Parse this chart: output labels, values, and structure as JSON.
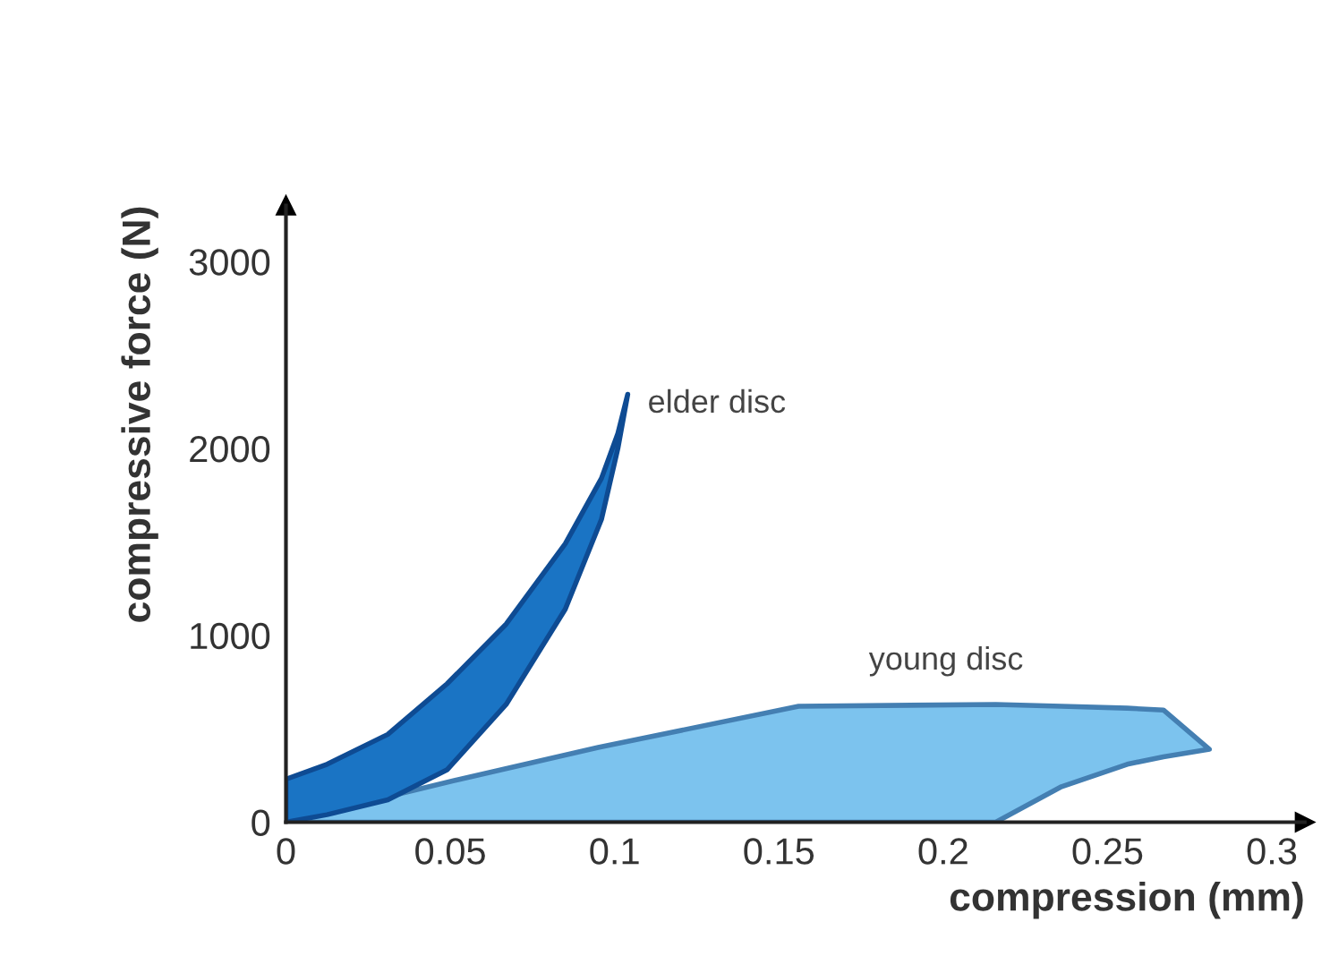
{
  "chart_data": {
    "type": "area",
    "xlabel": "compression (mm)",
    "ylabel": "compressive force (N)",
    "xlim": [
      0,
      0.31
    ],
    "ylim": [
      0,
      3300
    ],
    "xticks": [
      0,
      0.05,
      0.1,
      0.15,
      0.2,
      0.25,
      0.3
    ],
    "yticks": [
      0,
      1000,
      2000,
      3000
    ],
    "grid": false,
    "legend": false,
    "series": [
      {
        "color": "#7cc3ee",
        "x": [
          0,
          0.216,
          0.236,
          0.256,
          0.267,
          0.281,
          0.267,
          0.256,
          0.236,
          0.216,
          0.156,
          0.095,
          0.053,
          0.02,
          0
        ],
        "values": [
          0,
          0,
          190,
          310,
          350,
          390,
          600,
          610,
          620,
          630,
          620,
          400,
          230,
          90,
          0
        ]
      },
      {
        "color": "#1a74c4",
        "x": [
          0,
          0.0125,
          0.031,
          0.049,
          0.067,
          0.085,
          0.096,
          0.101,
          0.104,
          0.101,
          0.096,
          0.085,
          0.067,
          0.049,
          0.031,
          0.0125,
          0
        ],
        "values": [
          0,
          40,
          120,
          280,
          630,
          1140,
          1620,
          2000,
          2290,
          2080,
          1840,
          1490,
          1060,
          740,
          470,
          310,
          230
        ]
      }
    ],
    "annotations": [
      "young disc",
      "elder disc"
    ]
  }
}
